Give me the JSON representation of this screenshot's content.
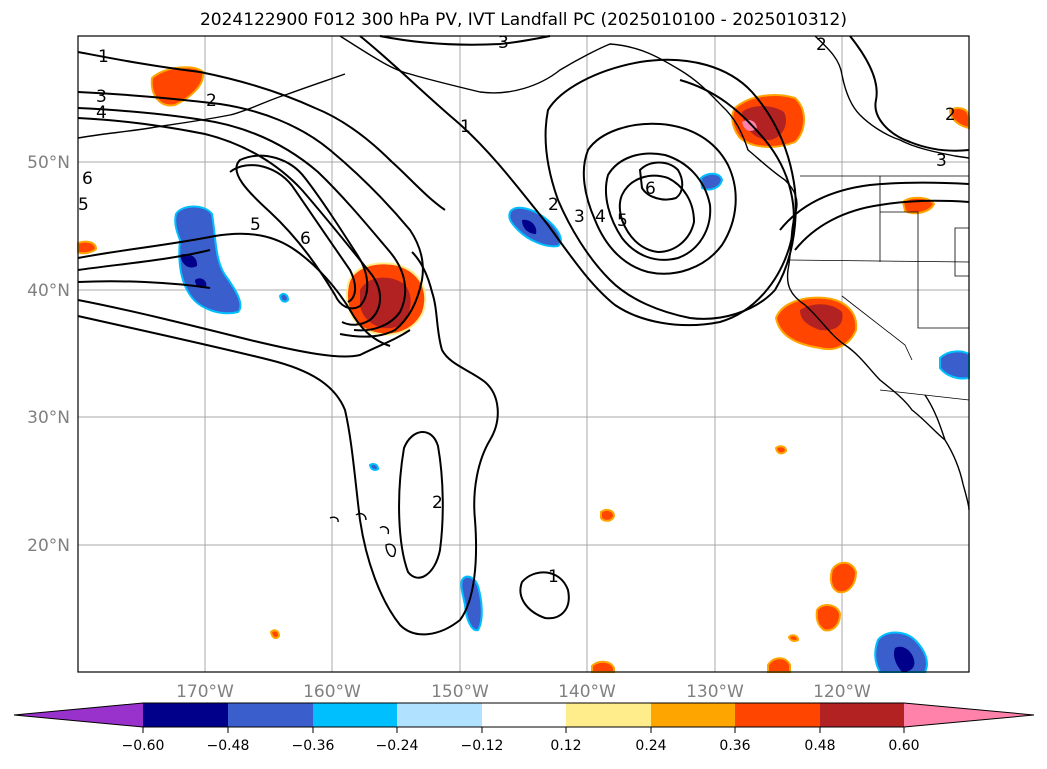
{
  "title": "2024122900 F012 300 hPa PV, IVT Landfall PC (2025010100 - 2025010312)",
  "map": {
    "lon_labels": [
      "170°W",
      "160°W",
      "150°W",
      "140°W",
      "130°W",
      "120°W"
    ],
    "lat_labels": [
      "50°N",
      "40°N",
      "30°N",
      "20°N"
    ],
    "contour_labels": [
      "1",
      "2",
      "3",
      "4",
      "5",
      "6",
      "2",
      "1",
      "2",
      "3",
      "4",
      "5",
      "6",
      "3",
      "1",
      "3",
      "2",
      "2",
      "6",
      "5"
    ]
  },
  "colorbar": {
    "ticks": [
      "−0.60",
      "−0.48",
      "−0.36",
      "−0.24",
      "−0.12",
      "0.12",
      "0.24",
      "0.36",
      "0.48",
      "0.60"
    ],
    "colors": [
      "#9932cc",
      "#00008b",
      "#3a5fcd",
      "#00bfff",
      "#b0e2ff",
      "#ffffff",
      "#ffec8b",
      "#ffa500",
      "#ff4500",
      "#b22222",
      "#ff82ab"
    ]
  }
}
